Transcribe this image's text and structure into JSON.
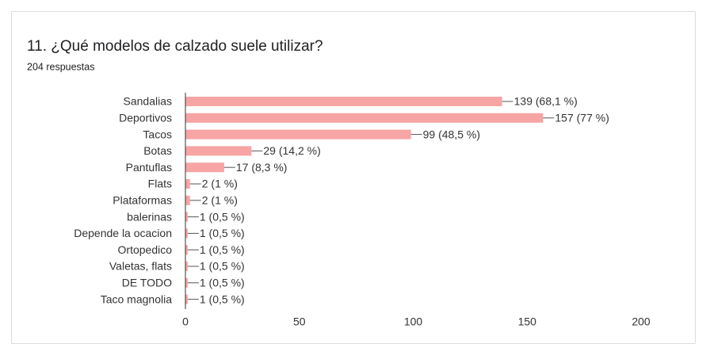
{
  "chart_data": {
    "type": "bar",
    "orientation": "horizontal",
    "title": "11. ¿Qué modelos de calzado suele utilizar?",
    "subtitle": "204 respuestas",
    "categories": [
      "Sandalias",
      "Deportivos",
      "Tacos",
      "Botas",
      "Pantuflas",
      "Flats",
      "Plataformas",
      "balerinas",
      "Depende la ocacion",
      "Ortopedico",
      "Valetas, flats",
      "DE TODO",
      "Taco magnolia"
    ],
    "values": [
      139,
      157,
      99,
      29,
      17,
      2,
      2,
      1,
      1,
      1,
      1,
      1,
      1
    ],
    "value_labels": [
      "139 (68,1 %)",
      "157 (77 %)",
      "99 (48,5 %)",
      "29 (14,2 %)",
      "17 (8,3 %)",
      "2 (1 %)",
      "2 (1 %)",
      "1 (0,5 %)",
      "1 (0,5 %)",
      "1 (0,5 %)",
      "1 (0,5 %)",
      "1 (0,5 %)",
      "1 (0,5 %)"
    ],
    "color": "#f7a4a4",
    "xlim": [
      0,
      200
    ],
    "xticks": [
      0,
      50,
      100,
      150,
      200
    ]
  }
}
